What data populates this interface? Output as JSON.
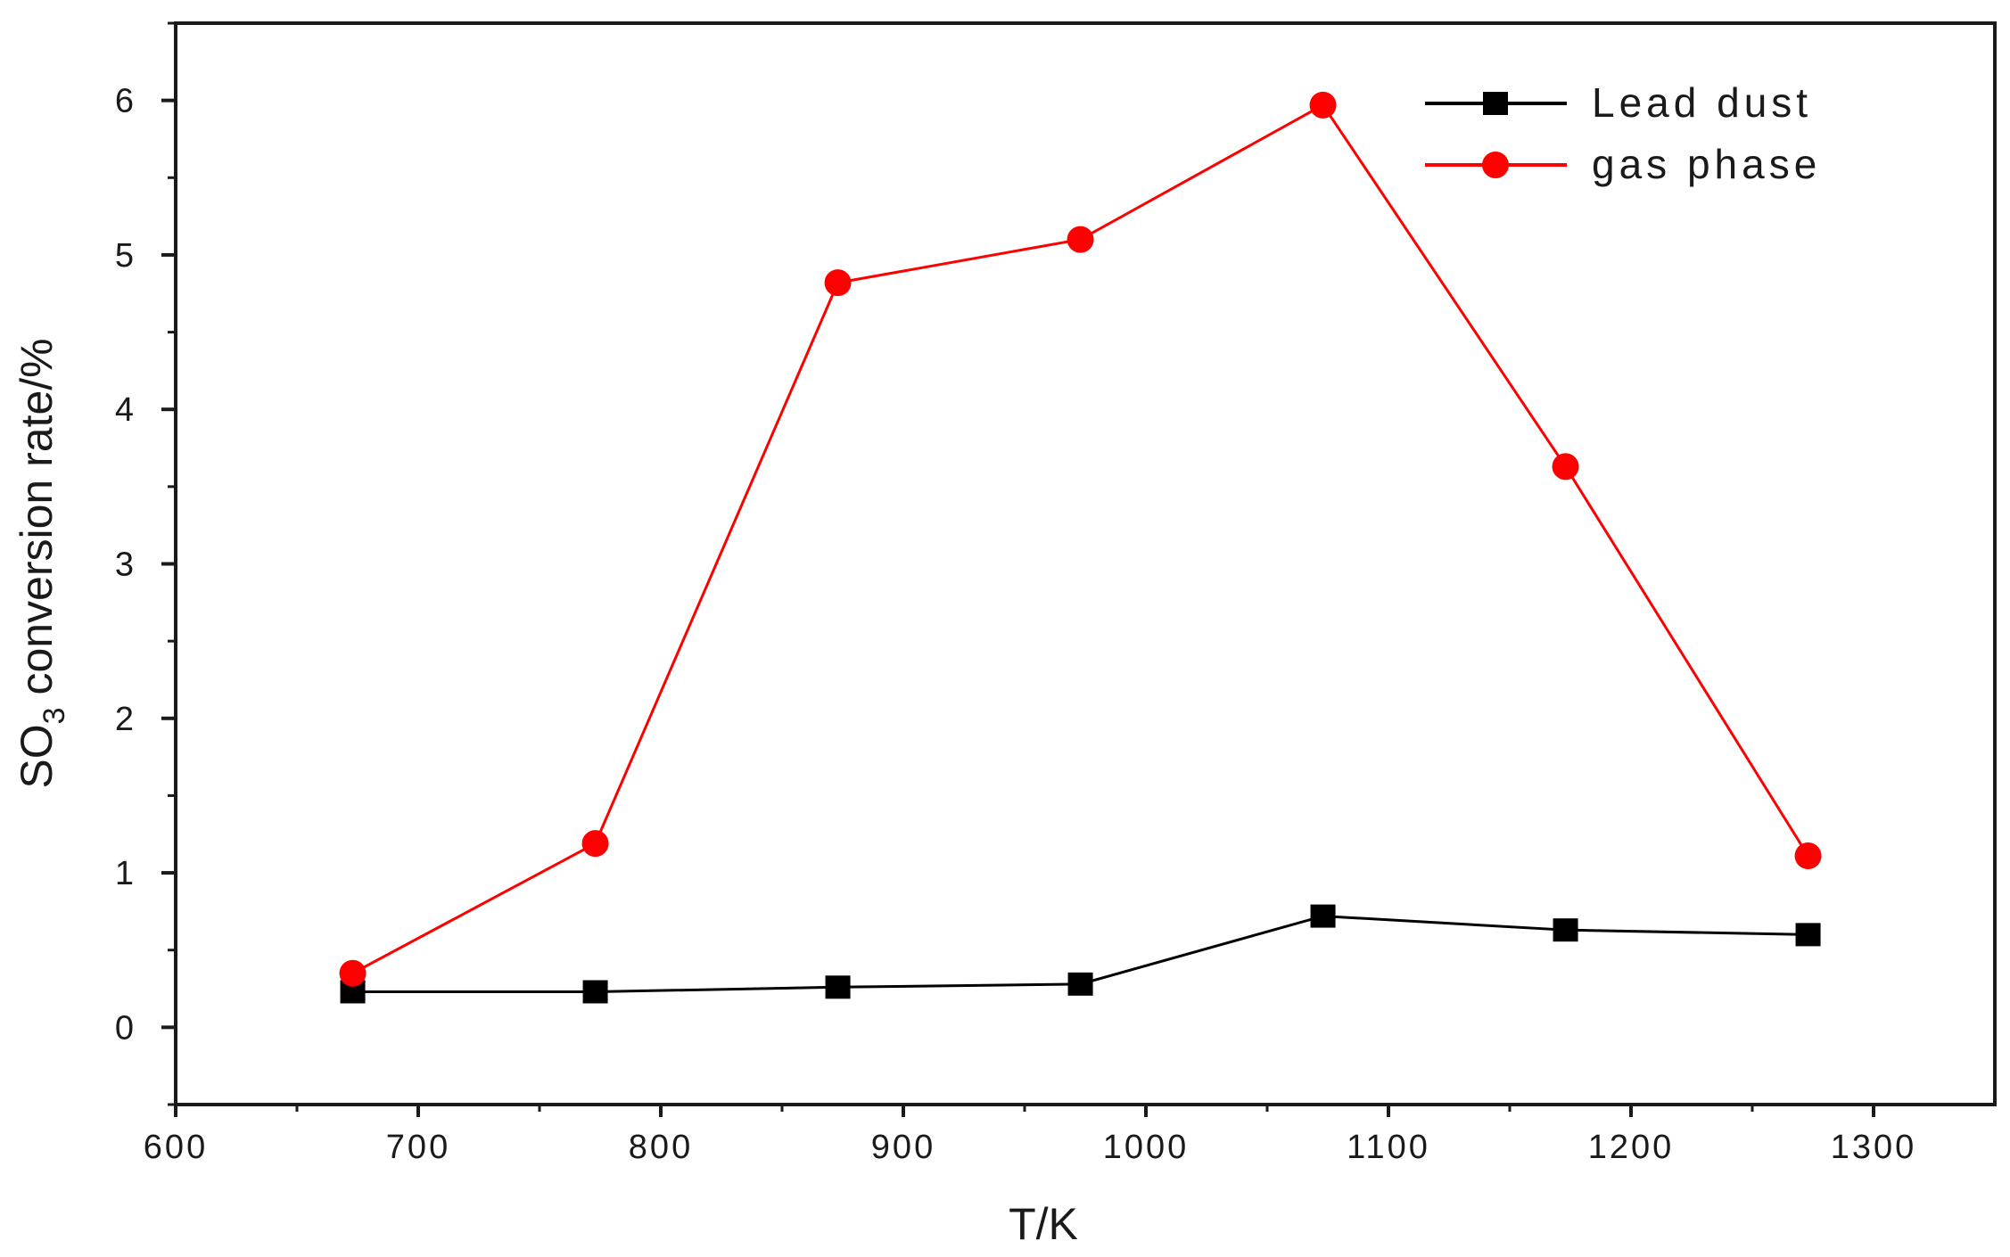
{
  "chart_data": {
    "type": "line",
    "title": "",
    "xlabel": "T/K",
    "ylabel": {
      "main": "SO",
      "subscript": "3",
      "rest": " conversion rate/%"
    },
    "xlim": [
      600,
      1350
    ],
    "ylim": [
      -0.5,
      6.5
    ],
    "x_ticks": [
      600,
      700,
      800,
      900,
      1000,
      1100,
      1200,
      1300
    ],
    "y_ticks": [
      0,
      1,
      2,
      3,
      4,
      5,
      6
    ],
    "grid": false,
    "legend_position": "top-right",
    "x": [
      673,
      773,
      873,
      973,
      1073,
      1173,
      1273
    ],
    "series": [
      {
        "name": "Lead dust",
        "color": "#000000",
        "marker": "square",
        "values": [
          0.23,
          0.23,
          0.26,
          0.28,
          0.72,
          0.63,
          0.6
        ]
      },
      {
        "name": "gas phase",
        "color": "#ff0000",
        "marker": "circle",
        "values": [
          0.35,
          1.19,
          4.82,
          5.1,
          5.97,
          3.63,
          1.11
        ]
      }
    ]
  }
}
